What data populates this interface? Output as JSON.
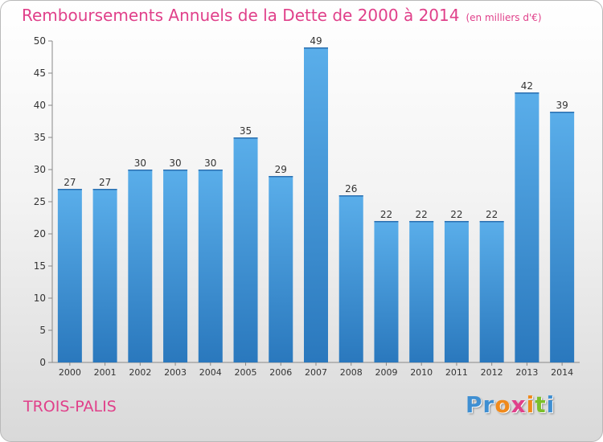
{
  "chart_data": {
    "type": "bar",
    "title": "Remboursements Annuels de la Dette de 2000 à 2014",
    "subtitle": "(en milliers d'€)",
    "categories": [
      "2000",
      "2001",
      "2002",
      "2003",
      "2004",
      "2005",
      "2006",
      "2007",
      "2008",
      "2009",
      "2010",
      "2011",
      "2012",
      "2013",
      "2014"
    ],
    "values": [
      27,
      27,
      30,
      30,
      30,
      35,
      29,
      49,
      26,
      22,
      22,
      22,
      22,
      42,
      39
    ],
    "ylim": [
      0,
      50
    ],
    "yticks": [
      0,
      5,
      10,
      15,
      20,
      25,
      30,
      35,
      40,
      45,
      50
    ],
    "xlabel": "",
    "ylabel": "",
    "grid": false,
    "bar_color": "#3b8fd6"
  },
  "location": "TROIS-PALIS",
  "logo": {
    "text": "Proxiti",
    "letter_colors": [
      "#3f8fd2",
      "#3f8fd2",
      "#f08a1c",
      "#e0408a",
      "#f08a1c",
      "#7bbf2a",
      "#3f8fd2"
    ]
  }
}
